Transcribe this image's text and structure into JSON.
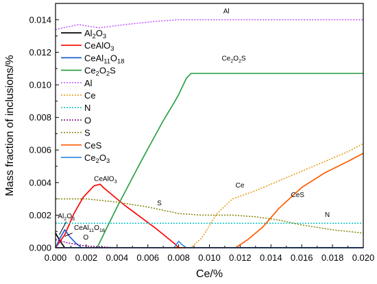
{
  "chart_data": {
    "type": "line",
    "xlabel": "Ce/%",
    "ylabel": "Mass fraction of inclusions/%",
    "xlim": [
      0,
      0.02
    ],
    "ylim": [
      0,
      0.015
    ],
    "xticks": [
      "0.000",
      "0.002",
      "0.004",
      "0.006",
      "0.008",
      "0.010",
      "0.012",
      "0.014",
      "0.016",
      "0.018",
      "0.020"
    ],
    "yticks": [
      "0.000",
      "0.002",
      "0.004",
      "0.006",
      "0.008",
      "0.010",
      "0.012",
      "0.014"
    ],
    "legend_position": "top-left",
    "series": [
      {
        "key": "al2o3",
        "name": "Al",
        "sub": "2",
        "name2": "O",
        "sub2": "3",
        "color": "#000000",
        "dash": "solid",
        "points": [
          [
            0,
            0.0009
          ],
          [
            0.0003,
            0.0004
          ],
          [
            0.0006,
            0.0
          ],
          [
            0.02,
            0.0
          ]
        ]
      },
      {
        "key": "cealo3",
        "name": "CeAlO",
        "sub": "3",
        "color": "#ff0000",
        "dash": "solid",
        "points": [
          [
            0,
            0.0
          ],
          [
            0.0006,
            0.0008
          ],
          [
            0.0012,
            0.0021
          ],
          [
            0.0018,
            0.0031
          ],
          [
            0.0025,
            0.0038
          ],
          [
            0.0029,
            0.0039
          ],
          [
            0.0031,
            0.0037
          ],
          [
            0.0045,
            0.0026
          ],
          [
            0.0065,
            0.0012
          ],
          [
            0.0078,
            0.0002
          ],
          [
            0.008,
            0.0
          ],
          [
            0.02,
            0.0
          ]
        ]
      },
      {
        "key": "ceal11o18",
        "name": "CeAl",
        "sub": "11",
        "name2": "O",
        "sub2": "18",
        "color": "#1f5fd1",
        "dash": "solid",
        "points": [
          [
            0,
            0.0
          ],
          [
            0.0003,
            0.0006
          ],
          [
            0.0006,
            0.0011
          ],
          [
            0.0009,
            0.0007
          ],
          [
            0.0013,
            0.0003
          ],
          [
            0.0017,
            0.0
          ],
          [
            0.02,
            0.0
          ]
        ]
      },
      {
        "key": "ce2o2s",
        "name": "Ce",
        "sub": "2",
        "name2": "O",
        "sub2": "2",
        "name3": "S",
        "color": "#2ca048",
        "dash": "solid",
        "points": [
          [
            0,
            0.0
          ],
          [
            0.0027,
            0.0
          ],
          [
            0.004,
            0.0025
          ],
          [
            0.0055,
            0.0052
          ],
          [
            0.007,
            0.0078
          ],
          [
            0.0077,
            0.0089
          ],
          [
            0.008,
            0.0094
          ],
          [
            0.0085,
            0.0104
          ],
          [
            0.0088,
            0.0107
          ],
          [
            0.0092,
            0.0107
          ],
          [
            0.02,
            0.0107
          ]
        ]
      },
      {
        "key": "al",
        "name": "Al",
        "color": "#c050ff",
        "dash": "2,2",
        "points": [
          [
            0,
            0.0134
          ],
          [
            0.0015,
            0.0137
          ],
          [
            0.0028,
            0.0135
          ],
          [
            0.0045,
            0.0137
          ],
          [
            0.0065,
            0.0139
          ],
          [
            0.008,
            0.014
          ],
          [
            0.02,
            0.014
          ]
        ]
      },
      {
        "key": "ce",
        "name": "Ce",
        "color": "#e8940a",
        "dash": "2,2",
        "points": [
          [
            0,
            0.0
          ],
          [
            0.0088,
            0.0
          ],
          [
            0.0095,
            0.0006
          ],
          [
            0.0105,
            0.0021
          ],
          [
            0.0115,
            0.003
          ],
          [
            0.013,
            0.0035
          ],
          [
            0.0145,
            0.0041
          ],
          [
            0.016,
            0.0047
          ],
          [
            0.0175,
            0.0053
          ],
          [
            0.019,
            0.0059
          ],
          [
            0.02,
            0.0064
          ]
        ]
      },
      {
        "key": "n",
        "name": "N",
        "color": "#00c8c8",
        "dash": "2,2",
        "points": [
          [
            0,
            0.0015
          ],
          [
            0.02,
            0.0015
          ]
        ]
      },
      {
        "key": "o",
        "name": "O",
        "color": "#800080",
        "dash": "2,2",
        "points": [
          [
            0,
            0.0005
          ],
          [
            0.0008,
            0.0003
          ],
          [
            0.002,
            0.0001
          ],
          [
            0.004,
            0.0
          ],
          [
            0.02,
            0.0
          ]
        ]
      },
      {
        "key": "s",
        "name": "S",
        "color": "#808000",
        "dash": "2,2",
        "points": [
          [
            0,
            0.003
          ],
          [
            0.002,
            0.003
          ],
          [
            0.004,
            0.0028
          ],
          [
            0.006,
            0.0025
          ],
          [
            0.008,
            0.0021
          ],
          [
            0.0095,
            0.002
          ],
          [
            0.0115,
            0.002
          ],
          [
            0.013,
            0.0019
          ],
          [
            0.0145,
            0.0017
          ],
          [
            0.016,
            0.0014
          ],
          [
            0.018,
            0.0011
          ],
          [
            0.02,
            0.0009
          ]
        ]
      },
      {
        "key": "ces",
        "name": "CeS",
        "color": "#ff5a00",
        "dash": "solid",
        "points": [
          [
            0,
            0.0
          ],
          [
            0.0117,
            0.0
          ],
          [
            0.0125,
            0.0005
          ],
          [
            0.0135,
            0.0013
          ],
          [
            0.0145,
            0.0024
          ],
          [
            0.016,
            0.0037
          ],
          [
            0.0175,
            0.0046
          ],
          [
            0.019,
            0.0053
          ],
          [
            0.02,
            0.0058
          ]
        ]
      },
      {
        "key": "ce2o3",
        "name": "Ce",
        "sub": "2",
        "name2": "O",
        "sub2": "3",
        "color": "#3c8ce6",
        "dash": "solid",
        "points": [
          [
            0,
            0.0
          ],
          [
            0.0077,
            0.0
          ],
          [
            0.008,
            0.0004
          ],
          [
            0.0082,
            0.0002
          ],
          [
            0.0085,
            0.0
          ],
          [
            0.02,
            0.0
          ]
        ]
      }
    ],
    "annotations": [
      {
        "name": "Al",
        "x": 0.0109,
        "y": 0.0144
      },
      {
        "name": "Ce",
        "sub": "2",
        "name2": "O",
        "sub2": "2",
        "name3": "S",
        "x": 0.0108,
        "y": 0.0115
      },
      {
        "name": "CeAlO",
        "sub": "3",
        "x": 0.0025,
        "y": 0.0041
      },
      {
        "name": "Ce",
        "x": 0.0117,
        "y": 0.0037
      },
      {
        "name": "CeS",
        "x": 0.0153,
        "y": 0.0031
      },
      {
        "name": "S",
        "x": 0.0066,
        "y": 0.0026
      },
      {
        "name": "N",
        "x": 0.0175,
        "y": 0.0019
      },
      {
        "name": "Al",
        "sub": "2",
        "name2": "O",
        "sub2": "3",
        "x": 0.00015,
        "y": 0.0018
      },
      {
        "name": "CeAl",
        "sub": "11",
        "name2": "O",
        "sub2": "18",
        "x": 0.0012,
        "y": 0.0011
      },
      {
        "name": "O",
        "x": 0.0018,
        "y": 0.0005
      }
    ]
  }
}
